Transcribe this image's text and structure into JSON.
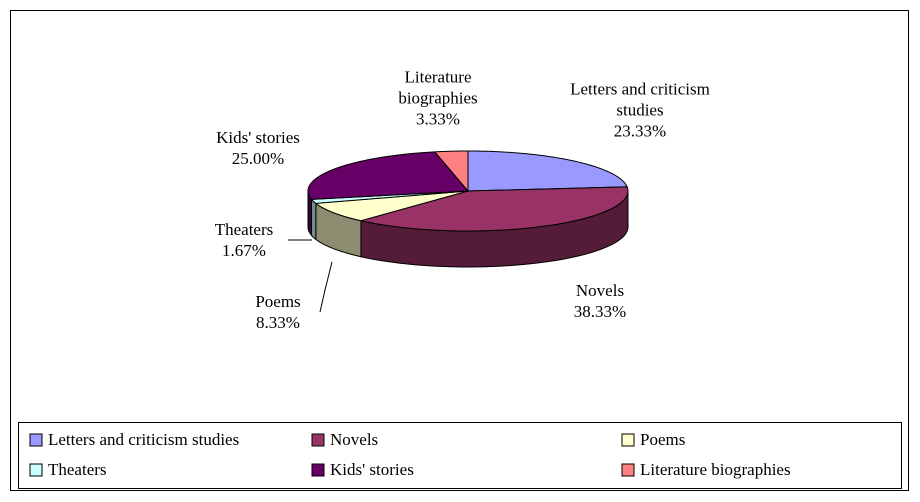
{
  "chart_data": {
    "type": "pie3d",
    "categories": [
      "Letters and criticism studies",
      "Novels",
      "Poems",
      "Theaters",
      "Kids' stories",
      "Literature biographies"
    ],
    "values": [
      23.33,
      38.33,
      8.33,
      1.67,
      25.0,
      3.33
    ],
    "value_labels": [
      "23.33%",
      "38.33%",
      "8.33%",
      "1.67%",
      "25.00%",
      "3.33%"
    ],
    "colors": [
      "#9999ff",
      "#993366",
      "#ffffcc",
      "#ccffff",
      "#660066",
      "#ff8080"
    ],
    "legend": "bottom"
  }
}
